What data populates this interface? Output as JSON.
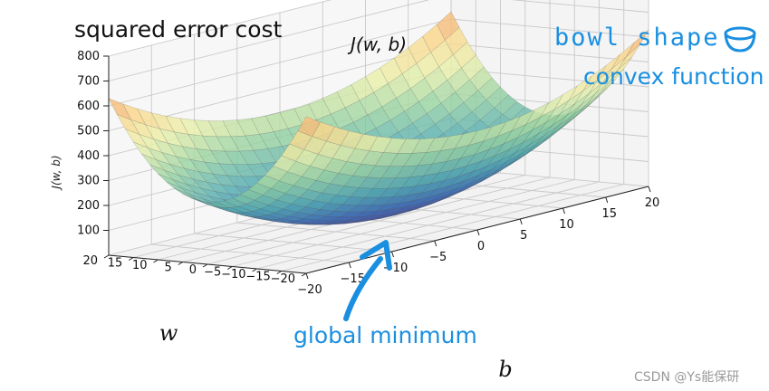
{
  "title": "squared error cost",
  "annotations": {
    "bowl": "bowl shape",
    "convex": "convex function",
    "global_min": "global minimum"
  },
  "watermark": "CSDN @Ys能保研",
  "colors": {
    "annotation": "#1a8fe0",
    "surface_high": "#9e2a4f",
    "surface_mid": "#f8f2a8",
    "surface_low": "#4a4a9c"
  },
  "chart_data": {
    "type": "surface3d",
    "title": "squared error cost",
    "zlabel": "J(w, b)",
    "surface_top_label": "J(w, b)",
    "xlabel": "b",
    "ylabel": "w",
    "b_ticks": [
      -20,
      -15,
      -10,
      -5,
      0,
      5,
      10,
      15,
      20
    ],
    "w_ticks": [
      -20,
      -15,
      -10,
      -5,
      0,
      5,
      10,
      15,
      20
    ],
    "z_ticks": [
      100,
      200,
      300,
      400,
      500,
      600,
      700,
      800
    ],
    "b_range": [
      -20,
      20
    ],
    "w_range": [
      -20,
      20
    ],
    "z_range": [
      0,
      800
    ],
    "colormap": "Spectral",
    "grid": true
  }
}
